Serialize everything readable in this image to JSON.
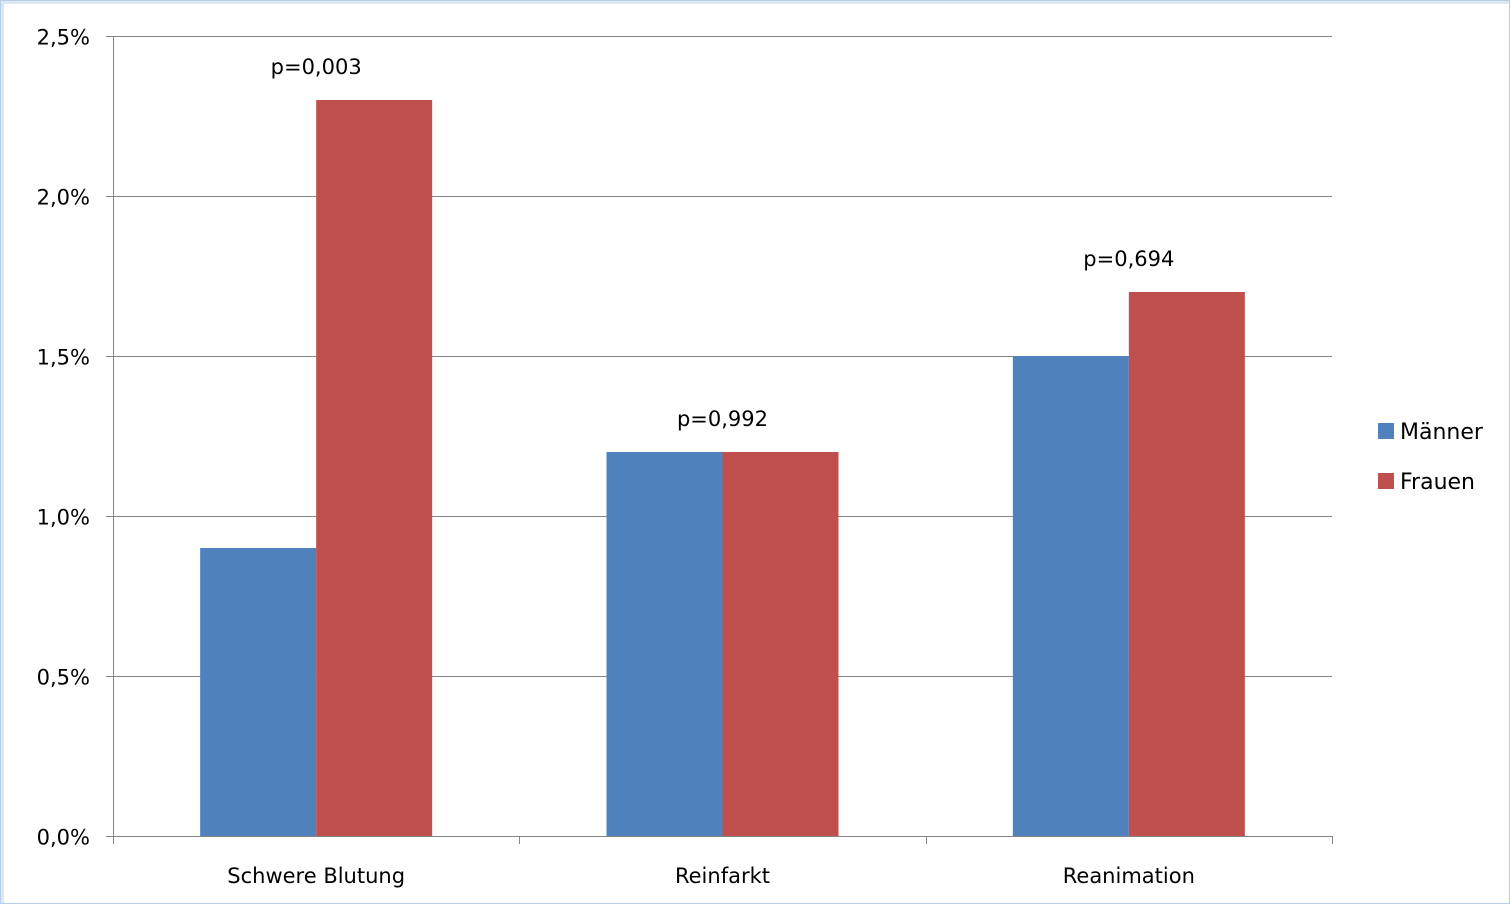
{
  "chart_data": {
    "type": "bar",
    "title": "",
    "xlabel": "",
    "ylabel": "",
    "categories": [
      "Schwere Blutung",
      "Reinfarkt",
      "Reanimation"
    ],
    "series": [
      {
        "name": "Männer",
        "color": "#4f81bd",
        "values": [
          0.9,
          1.2,
          1.5
        ]
      },
      {
        "name": "Frauen",
        "color": "#c0504d",
        "values": [
          2.3,
          1.2,
          1.7
        ]
      }
    ],
    "annotations": [
      "p=0,003",
      "p=0,992",
      "p=0,694"
    ],
    "ylim": [
      0,
      2.5
    ],
    "yticks": [
      0,
      0.5,
      1.0,
      1.5,
      2.0,
      2.5
    ],
    "ytick_labels": [
      "0,0%",
      "0,5%",
      "1,0%",
      "1,5%",
      "2,0%",
      "2,5%"
    ],
    "grid": true,
    "legend_position": "right",
    "gridline_color": "#868686",
    "axis_color": "#868686"
  }
}
